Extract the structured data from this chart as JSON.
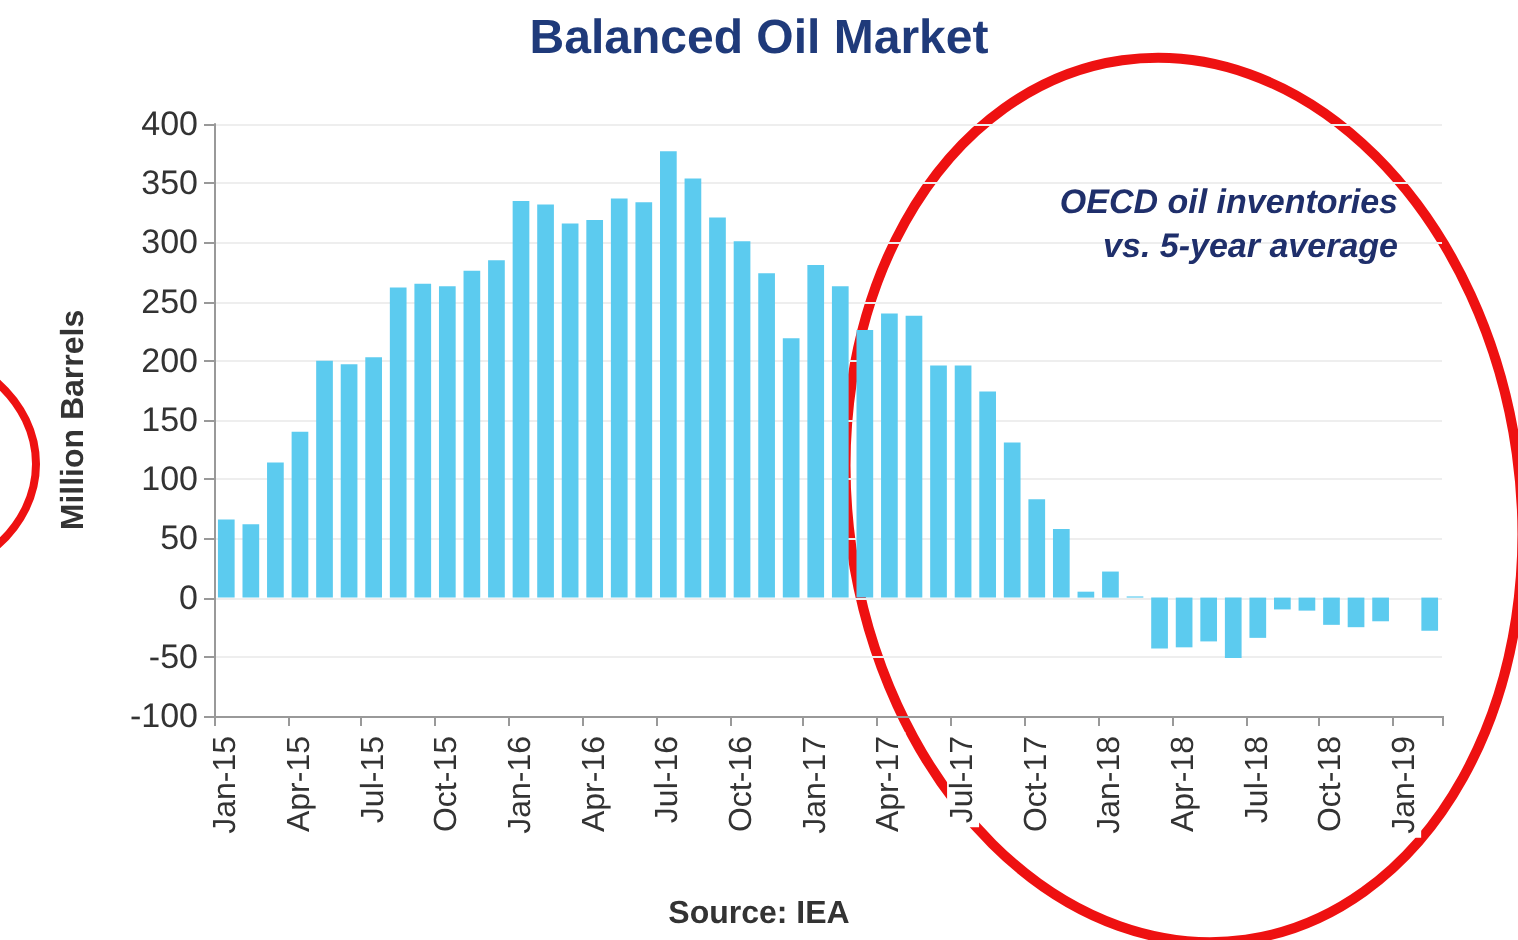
{
  "chart_data": {
    "type": "bar",
    "title": "Balanced Oil Market",
    "ylabel": "Million Barrels",
    "annotations": [
      "OECD oil inventories\nvs. 5-year average",
      "Source: IEA"
    ],
    "categories": [
      "Jan-15",
      null,
      null,
      "Apr-15",
      null,
      null,
      "Jul-15",
      null,
      null,
      "Oct-15",
      null,
      null,
      "Jan-16",
      null,
      null,
      "Apr-16",
      null,
      null,
      "Jul-16",
      null,
      null,
      "Oct-16",
      null,
      null,
      "Jan-17",
      null,
      null,
      "Apr-17",
      null,
      null,
      "Jul-17",
      null,
      null,
      "Oct-17",
      null,
      null,
      "Jan-18",
      null,
      null,
      "Apr-18",
      null,
      null,
      "Jul-18",
      null,
      null,
      "Oct-18",
      null,
      null,
      "Jan-19",
      null
    ],
    "values": [
      66,
      62,
      114,
      140,
      200,
      197,
      203,
      262,
      265,
      263,
      276,
      285,
      335,
      332,
      316,
      319,
      337,
      334,
      377,
      354,
      321,
      301,
      274,
      219,
      281,
      263,
      226,
      240,
      238,
      196,
      196,
      174,
      131,
      83,
      58,
      5,
      22,
      1,
      -43,
      -42,
      -37,
      -51,
      -34,
      -10,
      -11,
      -23,
      -25,
      -20,
      0,
      -28
    ],
    "color": "#5ccbef",
    "ylim": [
      -100,
      400
    ],
    "yticks": [
      -100,
      -50,
      0,
      50,
      100,
      150,
      200,
      250,
      300,
      350,
      400
    ],
    "grid": "y"
  }
}
